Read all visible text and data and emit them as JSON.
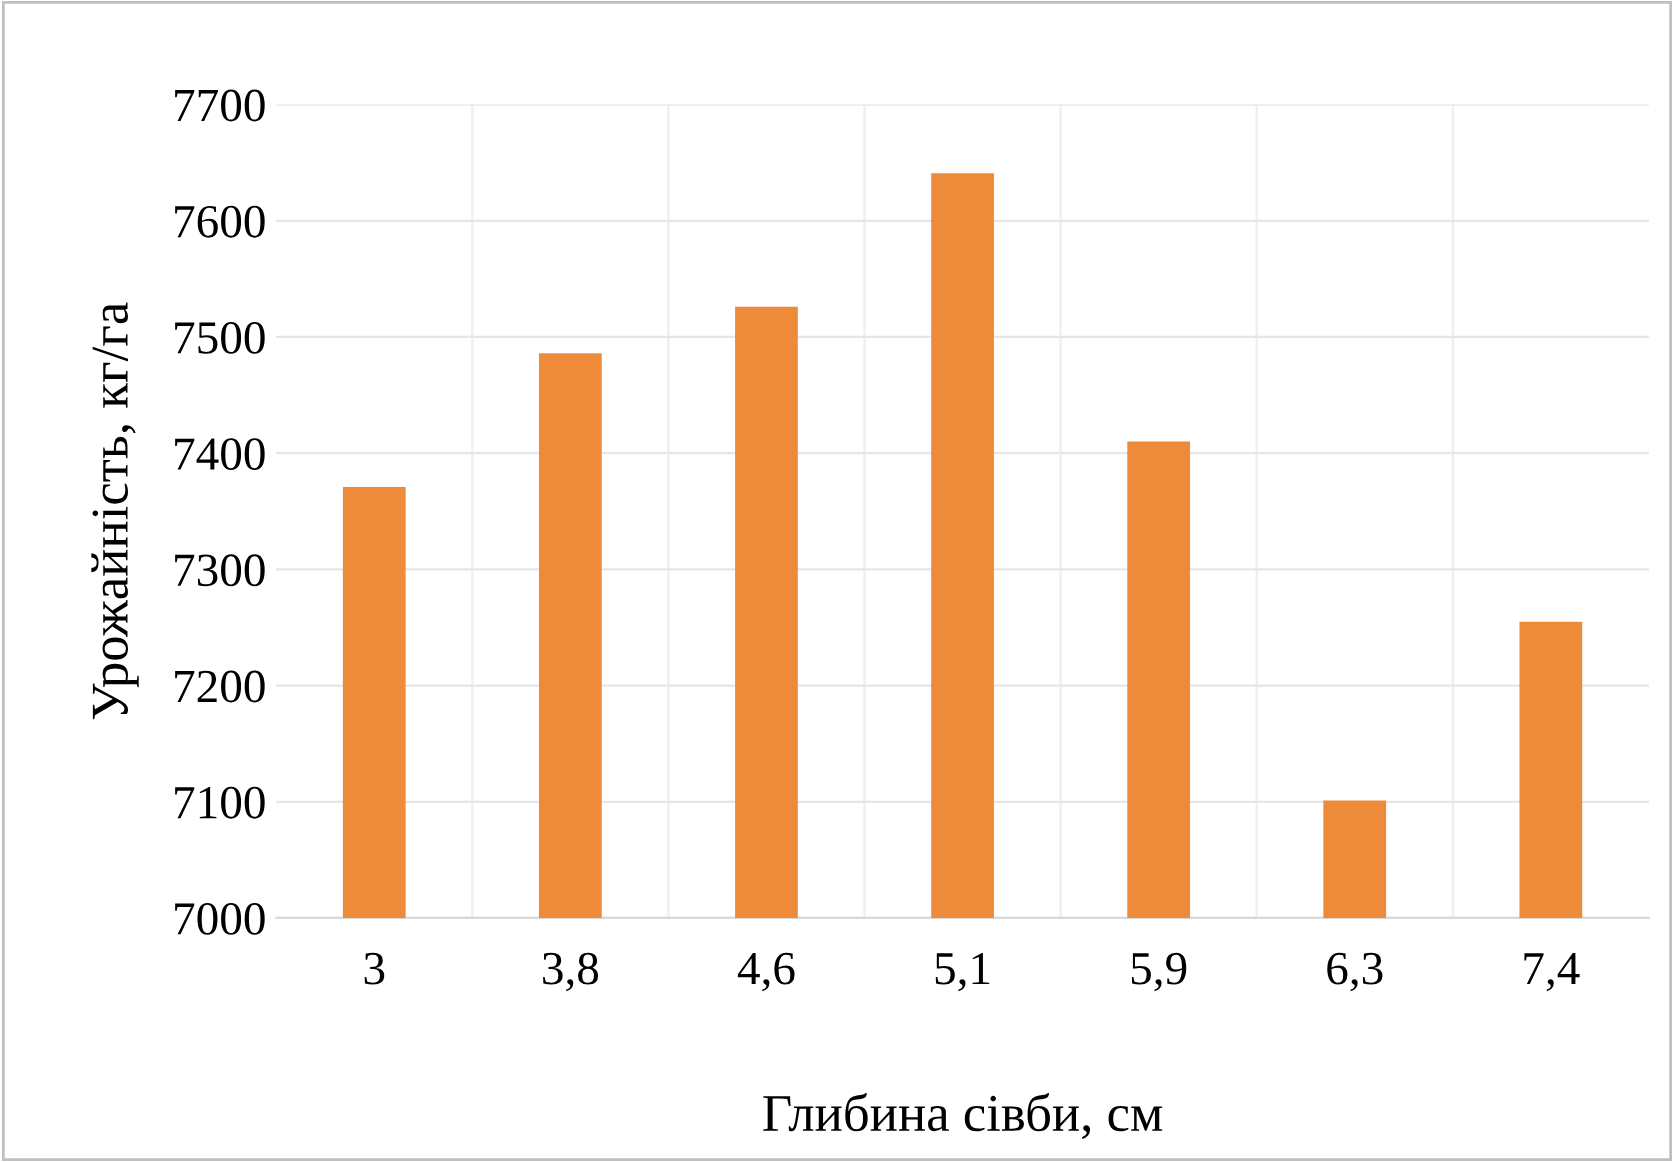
{
  "chart_data": {
    "type": "bar",
    "xlabel": "Глибина сівби, см",
    "ylabel": "Урожайність, кг/га",
    "categories": [
      "3",
      "3,8",
      "4,6",
      "5,1",
      "5,9",
      "6,3",
      "7,4"
    ],
    "values": [
      7371,
      7486,
      7526,
      7641,
      7410,
      7101,
      7255
    ],
    "color": "#ed8b3b",
    "ylim": [
      7000,
      7700
    ],
    "yticks": [
      7000,
      7100,
      7200,
      7300,
      7400,
      7500,
      7600,
      7700
    ],
    "grid": true
  }
}
